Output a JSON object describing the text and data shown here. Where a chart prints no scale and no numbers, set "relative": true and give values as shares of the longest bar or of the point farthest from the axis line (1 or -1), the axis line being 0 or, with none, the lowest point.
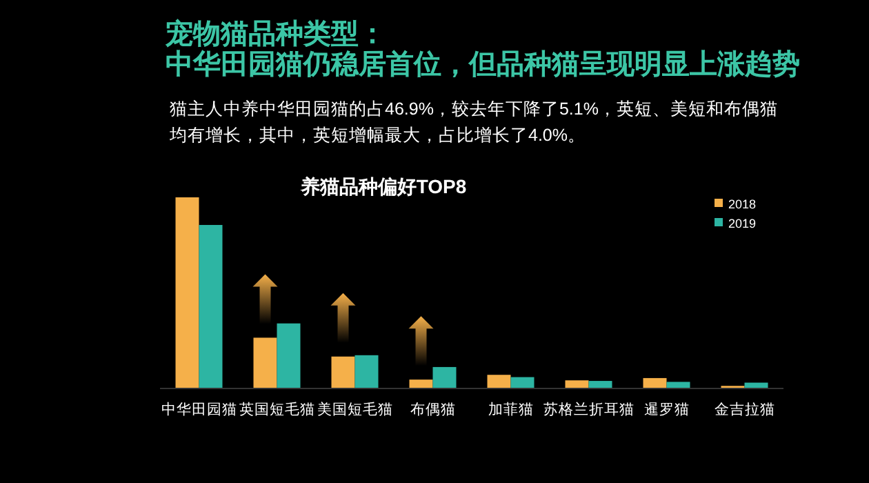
{
  "chart_data": {
    "type": "bar",
    "title": "宠物猫品种类型：",
    "subtitle": "中华田园猫仍稳居首位，但品种猫呈现明显上涨趋势",
    "annotations": [
      "猫主人中养中华田园猫的占46.9%，较去年下降了5.1%，英短、美短和布偶猫",
      "均有增长，其中，英短增幅最大，占比增长了4.0%。",
      "养猫品种偏好TOP8"
    ],
    "categories": [
      "中华田园猫",
      "英国短毛猫",
      "美国短毛猫",
      "布偶猫",
      "加菲猫",
      "苏格兰折耳猫",
      "暹罗猫",
      "金吉拉猫"
    ],
    "series": [
      {
        "name": "2018",
        "color": "#f5b04a",
        "values": [
          1,
          0.263,
          0.164,
          0.043,
          0.068,
          0.039,
          0.051,
          0.01
        ]
      },
      {
        "name": "2019",
        "color": "#2db5a3",
        "values": [
          0.855,
          0.338,
          0.171,
          0.109,
          0.056,
          0.036,
          0.031,
          0.027
        ]
      }
    ],
    "relative": true,
    "legend": "top right"
  }
}
